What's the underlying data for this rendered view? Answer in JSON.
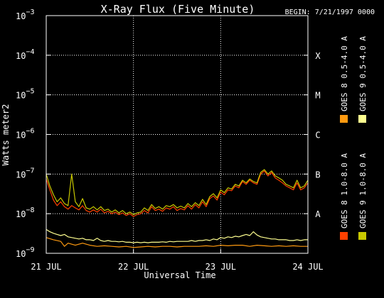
{
  "chart_data": {
    "type": "line",
    "title": "X-Ray Flux (Five Minute)",
    "begin_label": "BEGIN: 7/21/1997 0000",
    "xlabel": "Universal Time",
    "ylabel": "Watts meter2",
    "y_scale": "log",
    "ylim": [
      1e-09,
      0.001
    ],
    "xlim": [
      0,
      72
    ],
    "x_units": "hours since 21 JUL 1997 00:00 UT",
    "x_ticks": [
      {
        "x": 0,
        "label": "21 JUL"
      },
      {
        "x": 24,
        "label": "22 JUL"
      },
      {
        "x": 48,
        "label": "23 JUL"
      },
      {
        "x": 72,
        "label": "24 JUL"
      }
    ],
    "y_ticks": [
      {
        "exp": -9,
        "base": "10",
        "sup": "−9"
      },
      {
        "exp": -8,
        "base": "10",
        "sup": "−8"
      },
      {
        "exp": -7,
        "base": "10",
        "sup": "−7"
      },
      {
        "exp": -6,
        "base": "10",
        "sup": "−6"
      },
      {
        "exp": -5,
        "base": "10",
        "sup": "−5"
      },
      {
        "exp": -4,
        "base": "10",
        "sup": "−4"
      },
      {
        "exp": -3,
        "base": "10",
        "sup": "−3"
      }
    ],
    "flare_classes": [
      {
        "label": "A",
        "y": 1e-08
      },
      {
        "label": "B",
        "y": 1e-07
      },
      {
        "label": "C",
        "y": 1e-06
      },
      {
        "label": "M",
        "y": 1e-05
      },
      {
        "label": "X",
        "y": 0.0001
      }
    ],
    "grid": {
      "horizontal": true,
      "vertical_days": true
    },
    "legend_placement": "right, vertical text",
    "series": [
      {
        "name": "GOES 8 1.0-8.0 A",
        "color": "#ff4000",
        "points": [
          [
            0,
            7.5e-08
          ],
          [
            1,
            4e-08
          ],
          [
            2,
            2.2e-08
          ],
          [
            3,
            1.6e-08
          ],
          [
            4,
            2e-08
          ],
          [
            5,
            1.5e-08
          ],
          [
            6,
            1.3e-08
          ],
          [
            7,
            1.6e-08
          ],
          [
            8,
            1.4e-08
          ],
          [
            9,
            1.25e-08
          ],
          [
            10,
            1.6e-08
          ],
          [
            11,
            1.2e-08
          ],
          [
            12,
            1.1e-08
          ],
          [
            13,
            1.25e-08
          ],
          [
            14,
            1.1e-08
          ],
          [
            15,
            1.3e-08
          ],
          [
            16,
            1.05e-08
          ],
          [
            17,
            1.15e-08
          ],
          [
            18,
            1e-08
          ],
          [
            19,
            1.1e-08
          ],
          [
            20,
            9.5e-09
          ],
          [
            21,
            1.05e-08
          ],
          [
            22,
            9e-09
          ],
          [
            23,
            1e-08
          ],
          [
            24,
            8.5e-09
          ],
          [
            25,
            9.5e-09
          ],
          [
            26,
            1e-08
          ],
          [
            27,
            1.2e-08
          ],
          [
            28,
            1.05e-08
          ],
          [
            29,
            1.5e-08
          ],
          [
            30,
            1.2e-08
          ],
          [
            31,
            1.3e-08
          ],
          [
            32,
            1.15e-08
          ],
          [
            33,
            1.4e-08
          ],
          [
            34,
            1.3e-08
          ],
          [
            35,
            1.5e-08
          ],
          [
            36,
            1.2e-08
          ],
          [
            37,
            1.35e-08
          ],
          [
            38,
            1.25e-08
          ],
          [
            39,
            1.6e-08
          ],
          [
            40,
            1.3e-08
          ],
          [
            41,
            1.7e-08
          ],
          [
            42,
            1.4e-08
          ],
          [
            43,
            2e-08
          ],
          [
            44,
            1.5e-08
          ],
          [
            45,
            2.4e-08
          ],
          [
            46,
            2.8e-08
          ],
          [
            47,
            2.2e-08
          ],
          [
            48,
            3.5e-08
          ],
          [
            49,
            3e-08
          ],
          [
            50,
            4e-08
          ],
          [
            51,
            3.8e-08
          ],
          [
            52,
            5e-08
          ],
          [
            53,
            4.5e-08
          ],
          [
            54,
            6.5e-08
          ],
          [
            55,
            5.5e-08
          ],
          [
            56,
            7e-08
          ],
          [
            57,
            6e-08
          ],
          [
            58,
            5.5e-08
          ],
          [
            59,
            1e-07
          ],
          [
            60,
            1.2e-07
          ],
          [
            61,
            9e-08
          ],
          [
            62,
            1.1e-07
          ],
          [
            63,
            8e-08
          ],
          [
            64,
            7e-08
          ],
          [
            65,
            6e-08
          ],
          [
            66,
            5e-08
          ],
          [
            67,
            4.5e-08
          ],
          [
            68,
            4e-08
          ],
          [
            69,
            6e-08
          ],
          [
            70,
            4e-08
          ],
          [
            71,
            4.5e-08
          ],
          [
            72,
            6e-08
          ]
        ]
      },
      {
        "name": "GOES 8 0.5-4.0 A",
        "color": "#ff9a10",
        "points": [
          [
            0,
            2.5e-09
          ],
          [
            2,
            2.2e-09
          ],
          [
            4,
            2e-09
          ],
          [
            5,
            1.5e-09
          ],
          [
            6,
            1.8e-09
          ],
          [
            8,
            1.6e-09
          ],
          [
            10,
            1.8e-09
          ],
          [
            12,
            1.6e-09
          ],
          [
            14,
            1.5e-09
          ],
          [
            16,
            1.55e-09
          ],
          [
            18,
            1.5e-09
          ],
          [
            20,
            1.45e-09
          ],
          [
            22,
            1.5e-09
          ],
          [
            24,
            1.4e-09
          ],
          [
            26,
            1.45e-09
          ],
          [
            28,
            1.5e-09
          ],
          [
            30,
            1.45e-09
          ],
          [
            32,
            1.5e-09
          ],
          [
            34,
            1.5e-09
          ],
          [
            36,
            1.45e-09
          ],
          [
            38,
            1.5e-09
          ],
          [
            40,
            1.5e-09
          ],
          [
            42,
            1.5e-09
          ],
          [
            44,
            1.55e-09
          ],
          [
            46,
            1.5e-09
          ],
          [
            48,
            1.6e-09
          ],
          [
            50,
            1.55e-09
          ],
          [
            52,
            1.6e-09
          ],
          [
            54,
            1.6e-09
          ],
          [
            56,
            1.5e-09
          ],
          [
            58,
            1.6e-09
          ],
          [
            60,
            1.55e-09
          ],
          [
            62,
            1.5e-09
          ],
          [
            64,
            1.55e-09
          ],
          [
            66,
            1.5e-09
          ],
          [
            68,
            1.55e-09
          ],
          [
            70,
            1.5e-09
          ],
          [
            72,
            1.5e-09
          ]
        ]
      },
      {
        "name": "GOES 9 0.5-4.0 A",
        "color": "#ffff90",
        "points": [
          [
            0,
            4e-09
          ],
          [
            1,
            3.5e-09
          ],
          [
            2,
            3.2e-09
          ],
          [
            3,
            3e-09
          ],
          [
            4,
            2.8e-09
          ],
          [
            5,
            3e-09
          ],
          [
            6,
            2.6e-09
          ],
          [
            7,
            2.5e-09
          ],
          [
            8,
            2.4e-09
          ],
          [
            9,
            2.3e-09
          ],
          [
            10,
            2.4e-09
          ],
          [
            11,
            2.2e-09
          ],
          [
            12,
            2.2e-09
          ],
          [
            13,
            2.1e-09
          ],
          [
            14,
            2.4e-09
          ],
          [
            15,
            2.1e-09
          ],
          [
            16,
            2e-09
          ],
          [
            17,
            2.1e-09
          ],
          [
            18,
            2e-09
          ],
          [
            19,
            2e-09
          ],
          [
            20,
            1.95e-09
          ],
          [
            21,
            2e-09
          ],
          [
            22,
            1.9e-09
          ],
          [
            23,
            1.9e-09
          ],
          [
            24,
            1.85e-09
          ],
          [
            25,
            1.9e-09
          ],
          [
            26,
            1.85e-09
          ],
          [
            27,
            1.9e-09
          ],
          [
            28,
            1.85e-09
          ],
          [
            29,
            1.9e-09
          ],
          [
            30,
            1.9e-09
          ],
          [
            31,
            1.9e-09
          ],
          [
            32,
            1.95e-09
          ],
          [
            33,
            1.9e-09
          ],
          [
            34,
            2e-09
          ],
          [
            35,
            1.95e-09
          ],
          [
            36,
            2e-09
          ],
          [
            37,
            2e-09
          ],
          [
            38,
            2e-09
          ],
          [
            39,
            2e-09
          ],
          [
            40,
            2.1e-09
          ],
          [
            41,
            2e-09
          ],
          [
            42,
            2.1e-09
          ],
          [
            43,
            2.1e-09
          ],
          [
            44,
            2.2e-09
          ],
          [
            45,
            2.1e-09
          ],
          [
            46,
            2.3e-09
          ],
          [
            47,
            2.2e-09
          ],
          [
            48,
            2.5e-09
          ],
          [
            49,
            2.4e-09
          ],
          [
            50,
            2.6e-09
          ],
          [
            51,
            2.5e-09
          ],
          [
            52,
            2.7e-09
          ],
          [
            53,
            2.6e-09
          ],
          [
            54,
            2.8e-09
          ],
          [
            55,
            3e-09
          ],
          [
            56,
            2.8e-09
          ],
          [
            57,
            3.5e-09
          ],
          [
            58,
            2.9e-09
          ],
          [
            59,
            2.6e-09
          ],
          [
            60,
            2.5e-09
          ],
          [
            61,
            2.4e-09
          ],
          [
            62,
            2.3e-09
          ],
          [
            63,
            2.3e-09
          ],
          [
            64,
            2.2e-09
          ],
          [
            65,
            2.2e-09
          ],
          [
            66,
            2.2e-09
          ],
          [
            67,
            2.1e-09
          ],
          [
            68,
            2.1e-09
          ],
          [
            69,
            2.2e-09
          ],
          [
            70,
            2.1e-09
          ],
          [
            71,
            2.2e-09
          ],
          [
            72,
            2.2e-09
          ]
        ]
      },
      {
        "name": "GOES 9 1.0-8.0 A",
        "color": "#c8c800",
        "points": [
          [
            0,
            1e-07
          ],
          [
            1,
            5e-08
          ],
          [
            2,
            3e-08
          ],
          [
            3,
            2e-08
          ],
          [
            4,
            2.5e-08
          ],
          [
            5,
            1.8e-08
          ],
          [
            6,
            1.6e-08
          ],
          [
            7,
            1e-07
          ],
          [
            8,
            2e-08
          ],
          [
            9,
            1.5e-08
          ],
          [
            10,
            2.4e-08
          ],
          [
            11,
            1.4e-08
          ],
          [
            12,
            1.3e-08
          ],
          [
            13,
            1.5e-08
          ],
          [
            14,
            1.25e-08
          ],
          [
            15,
            1.5e-08
          ],
          [
            16,
            1.2e-08
          ],
          [
            17,
            1.3e-08
          ],
          [
            18,
            1.1e-08
          ],
          [
            19,
            1.25e-08
          ],
          [
            20,
            1.05e-08
          ],
          [
            21,
            1.2e-08
          ],
          [
            22,
            1e-08
          ],
          [
            23,
            1.1e-08
          ],
          [
            24,
            9.5e-09
          ],
          [
            25,
            1.05e-08
          ],
          [
            26,
            1.1e-08
          ],
          [
            27,
            1.4e-08
          ],
          [
            28,
            1.2e-08
          ],
          [
            29,
            1.7e-08
          ],
          [
            30,
            1.35e-08
          ],
          [
            31,
            1.5e-08
          ],
          [
            32,
            1.3e-08
          ],
          [
            33,
            1.6e-08
          ],
          [
            34,
            1.5e-08
          ],
          [
            35,
            1.7e-08
          ],
          [
            36,
            1.4e-08
          ],
          [
            37,
            1.55e-08
          ],
          [
            38,
            1.4e-08
          ],
          [
            39,
            1.8e-08
          ],
          [
            40,
            1.5e-08
          ],
          [
            41,
            1.9e-08
          ],
          [
            42,
            1.6e-08
          ],
          [
            43,
            2.3e-08
          ],
          [
            44,
            1.7e-08
          ],
          [
            45,
            2.7e-08
          ],
          [
            46,
            3.2e-08
          ],
          [
            47,
            2.5e-08
          ],
          [
            48,
            4e-08
          ],
          [
            49,
            3.4e-08
          ],
          [
            50,
            4.5e-08
          ],
          [
            51,
            4.2e-08
          ],
          [
            52,
            5.5e-08
          ],
          [
            53,
            5e-08
          ],
          [
            54,
            7e-08
          ],
          [
            55,
            6e-08
          ],
          [
            56,
            7.5e-08
          ],
          [
            57,
            6.5e-08
          ],
          [
            58,
            6e-08
          ],
          [
            59,
            1.1e-07
          ],
          [
            60,
            1.3e-07
          ],
          [
            61,
            1e-07
          ],
          [
            62,
            1.2e-07
          ],
          [
            63,
            9e-08
          ],
          [
            64,
            8e-08
          ],
          [
            65,
            7e-08
          ],
          [
            66,
            5.5e-08
          ],
          [
            67,
            5e-08
          ],
          [
            68,
            4.5e-08
          ],
          [
            69,
            7e-08
          ],
          [
            70,
            4.5e-08
          ],
          [
            71,
            5e-08
          ],
          [
            72,
            7e-08
          ]
        ]
      }
    ]
  }
}
